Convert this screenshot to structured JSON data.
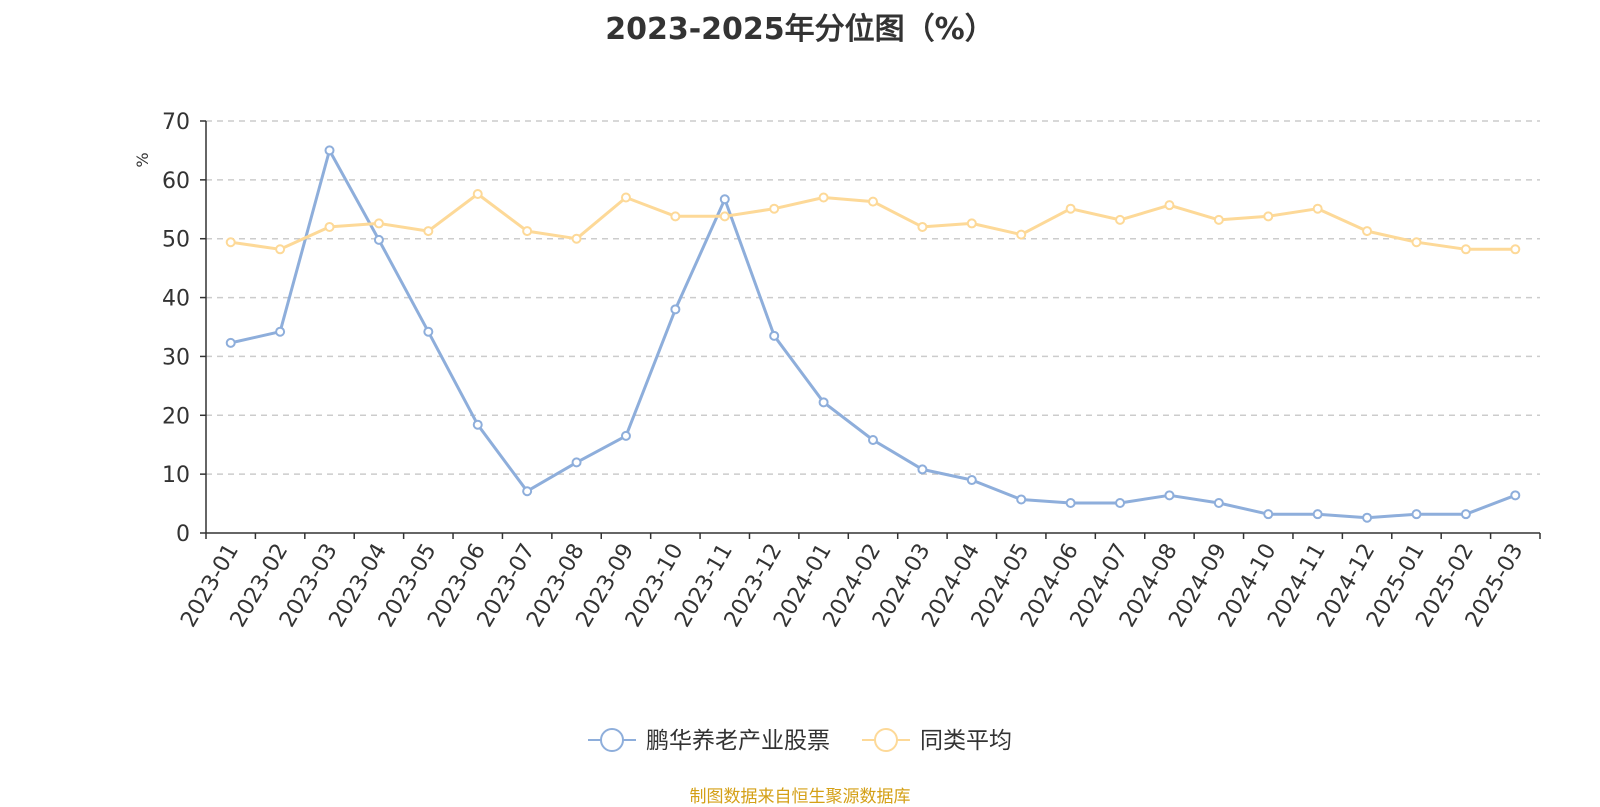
{
  "chart_data": {
    "type": "line",
    "title": "2023-2025年分位图（%）",
    "ylabel": "%",
    "ylim": [
      0,
      70
    ],
    "y_ticks": [
      0,
      10,
      20,
      30,
      40,
      50,
      60,
      70
    ],
    "grid": true,
    "legend_position": "bottom-center",
    "x": [
      "2023-01",
      "2023-02",
      "2023-03",
      "2023-04",
      "2023-05",
      "2023-06",
      "2023-07",
      "2023-08",
      "2023-09",
      "2023-10",
      "2023-11",
      "2023-12",
      "2024-01",
      "2024-02",
      "2024-03",
      "2024-04",
      "2024-05",
      "2024-06",
      "2024-07",
      "2024-08",
      "2024-09",
      "2024-10",
      "2024-11",
      "2024-12",
      "2025-01",
      "2025-02",
      "2025-03"
    ],
    "series": [
      {
        "name": "鹏华养老产业股票",
        "color": "#8eaedb",
        "values": [
          32.3,
          34.2,
          65.0,
          49.8,
          34.2,
          18.4,
          7.1,
          12.0,
          16.5,
          38.0,
          56.7,
          33.5,
          22.2,
          15.8,
          10.8,
          9.0,
          5.7,
          5.1,
          5.1,
          6.4,
          5.1,
          3.2,
          3.2,
          2.6,
          3.2,
          3.2,
          6.4
        ]
      },
      {
        "name": "同类平均",
        "color": "#fdd998",
        "values": [
          49.4,
          48.2,
          52.0,
          52.6,
          51.3,
          57.6,
          51.3,
          50.0,
          57.0,
          53.8,
          53.8,
          55.1,
          57.0,
          56.3,
          52.0,
          52.6,
          50.7,
          55.1,
          53.2,
          55.7,
          53.2,
          53.8,
          55.1,
          51.3,
          49.4,
          48.2,
          48.2
        ]
      }
    ],
    "source_note": "制图数据来自恒生聚源数据库"
  },
  "colors": {
    "axis": "#333333",
    "grid": "#cccccc",
    "ylabel": "#ff0000",
    "source": "#d4a017"
  }
}
